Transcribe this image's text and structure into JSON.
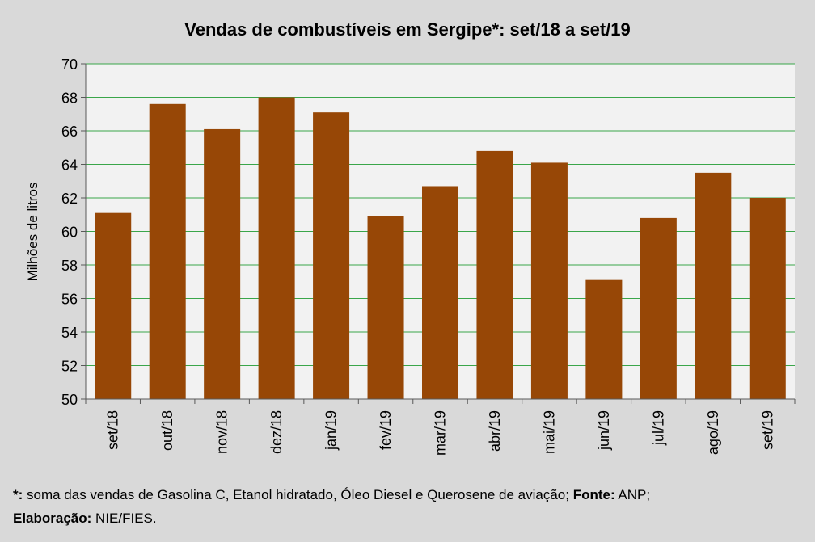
{
  "chart_data": {
    "type": "bar",
    "title": "Vendas de combustíveis em Sergipe*: set/18 a set/19",
    "xlabel": "",
    "ylabel": "Milhões de litros",
    "ylim": [
      50,
      70
    ],
    "yticks": [
      50,
      52,
      54,
      56,
      58,
      60,
      62,
      64,
      66,
      68,
      70
    ],
    "grid": true,
    "categories": [
      "set/18",
      "out/18",
      "nov/18",
      "dez/18",
      "jan/19",
      "fev/19",
      "mar/19",
      "abr/19",
      "mai/19",
      "jun/19",
      "jul/19",
      "ago/19",
      "set/19"
    ],
    "values": [
      61.1,
      67.6,
      66.1,
      68.0,
      67.1,
      60.9,
      62.7,
      64.8,
      64.1,
      57.1,
      60.8,
      63.5,
      62.0
    ],
    "colors": {
      "bar": "#974706",
      "grid": "#3aa64a",
      "plot_bg": "#f2f2f2",
      "page_bg": "#d9d9d9"
    }
  },
  "footnote": {
    "star_label": "*:",
    "star_text": " soma das vendas de Gasolina C, Etanol hidratado, Óleo Diesel e Querosene de aviação; ",
    "source_label": "Fonte:",
    "source_text": " ANP;",
    "author_label": "Elaboração:",
    "author_text": " NIE/FIES."
  }
}
